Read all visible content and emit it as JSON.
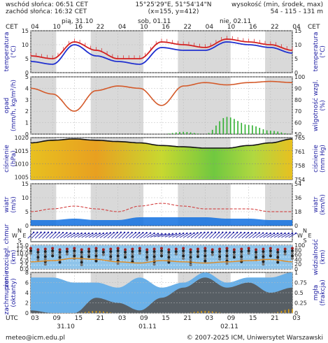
{
  "header": {
    "sunrise": "wschód słońca: 06:51 CET",
    "sunset": "zachód słońca: 16:32 CET",
    "coords": "15°25'29\"E, 51°54'14\"N",
    "grid": "(x=155, y=412)",
    "elev_title": "wysokość (min, środek, max)",
    "elev_values": "54 - 115 - 131 m",
    "tz_left": "CET",
    "tz_right": "CET",
    "day_labels_top": [
      "pią, 31.10",
      "sob, 01.11",
      "nie, 02.11"
    ],
    "hours_top": [
      "04",
      "10",
      "16",
      "22",
      "04",
      "10",
      "16",
      "22",
      "04",
      "10",
      "16",
      "22",
      "04"
    ]
  },
  "footer": {
    "tz": "UTC",
    "hours_bottom": [
      "03",
      "09",
      "15",
      "21",
      "03",
      "09",
      "15",
      "21",
      "03",
      "09",
      "15",
      "21",
      "03"
    ],
    "days_bottom": [
      "31.10",
      "01.11",
      "02.11"
    ],
    "email": "meteo@icm.edu.pl",
    "copyright": "© 2007-2025 ICM, Uniwersytet Warszawski"
  },
  "colors": {
    "night_band": "#d9d9d9",
    "temperature": "#d42020",
    "dew_point": "#2030d0",
    "humidity": "#d45a2a",
    "precip": "#30b030",
    "wind_mean": "#1070e0",
    "wind_gust": "#d03030",
    "cloud_total": "#6ab0e8",
    "cloud_low": "#555555",
    "fog": "#e0a010"
  },
  "chart_data": [
    {
      "type": "line",
      "name": "temperature",
      "ylabel_left": "temperatura",
      "unit_left": "(°C)",
      "ylabel_right": "temperatura",
      "unit_right": "(°C)",
      "ylim": [
        0,
        15
      ],
      "ticks": [
        0,
        5,
        10,
        15
      ],
      "x_hours": [
        0,
        6,
        12,
        18,
        24,
        30,
        36,
        42,
        48,
        54,
        60,
        66,
        72
      ],
      "series": [
        {
          "key": "temp",
          "values": [
            6,
            5,
            11,
            8,
            5,
            5,
            11,
            10,
            9,
            12,
            11,
            10,
            8
          ]
        },
        {
          "key": "dew",
          "values": [
            4,
            3,
            10,
            6,
            4,
            3,
            9,
            8,
            8,
            11,
            10,
            9,
            7
          ]
        }
      ]
    },
    {
      "type": "bar",
      "name": "precip-humidity",
      "ylabel_left": "opad",
      "unit_left": "(mm/h, kg/m²/h)",
      "ylabel_right": "wilgotność wzgl.",
      "unit_right": "(%)",
      "ylim": [
        0,
        5
      ],
      "ticks": [
        0,
        1,
        2,
        3,
        4,
        5
      ],
      "y2lim": [
        50,
        100
      ],
      "ticks2": [
        50,
        60,
        70,
        80,
        90,
        100
      ],
      "x_hours": [
        0,
        6,
        12,
        18,
        24,
        30,
        36,
        42,
        48,
        54,
        60,
        66,
        72
      ],
      "humidity": [
        90,
        85,
        70,
        88,
        92,
        90,
        75,
        92,
        95,
        93,
        95,
        96,
        95
      ],
      "precip": [
        0,
        0,
        0,
        0,
        0,
        0,
        0,
        0.2,
        0,
        1.5,
        0.8,
        0.3,
        0
      ]
    },
    {
      "type": "line",
      "name": "pressure",
      "ylabel_left": "ciśnienie",
      "unit_left": "(hPa)",
      "ylabel_right": "ciśnienie",
      "unit_right": "(mm Hg)",
      "ylim": [
        1004,
        1020
      ],
      "ticks": [
        1005,
        1010,
        1015,
        1020
      ],
      "ticks2": [
        "754",
        "758",
        "761",
        "765"
      ],
      "x_hours": [
        0,
        6,
        12,
        18,
        24,
        30,
        36,
        42,
        48,
        54,
        60,
        66,
        72
      ],
      "values": [
        1018,
        1019,
        1019.5,
        1019,
        1018.5,
        1018,
        1017,
        1016.5,
        1016,
        1016,
        1017,
        1018,
        1019.5
      ]
    },
    {
      "type": "line",
      "name": "wind",
      "ylabel_left": "wiatr",
      "unit_left": "(m/s)",
      "ylabel_right": "wiatr",
      "unit_right": "(km/h)",
      "ylim": [
        0,
        15
      ],
      "ticks": [
        0,
        5,
        10,
        15
      ],
      "ticks2": [
        "0",
        "18",
        "36",
        "54"
      ],
      "x_hours": [
        0,
        6,
        12,
        18,
        24,
        30,
        36,
        42,
        48,
        54,
        60,
        66,
        72
      ],
      "mean": [
        2,
        2,
        2.5,
        2,
        2,
        3,
        3,
        3,
        3,
        2.5,
        2.5,
        2,
        2
      ],
      "gust": [
        5,
        6,
        7,
        6,
        5,
        7,
        8,
        7,
        6,
        6,
        6,
        5,
        5
      ]
    },
    {
      "type": "scatter",
      "name": "wind-direction",
      "compass": [
        "N",
        "S",
        "W",
        "E"
      ],
      "x_hours": [
        0,
        6,
        12,
        18,
        24,
        30,
        36,
        42,
        48,
        54,
        60,
        66,
        72
      ],
      "direction_deg": [
        225,
        225,
        240,
        240,
        225,
        230,
        250,
        240,
        225,
        225,
        230,
        240,
        240
      ]
    },
    {
      "type": "line",
      "name": "cloud-base-visibility",
      "ylabel_left": "pion. rozciągł. chmur",
      "unit_left": "(km)",
      "ylabel_right": "widzialność",
      "unit_right": "(km)",
      "ylim": [
        0,
        15
      ],
      "ticks": [
        0.0,
        2.5,
        5.0,
        7.5,
        10.0,
        12.5,
        15.0
      ],
      "y2lim": [
        0,
        100
      ],
      "ticks2": [
        0,
        20,
        40,
        60,
        80,
        100
      ],
      "x_hours": [
        0,
        6,
        12,
        18,
        24,
        30,
        36,
        42,
        48,
        54,
        60,
        66,
        72
      ],
      "visibility": [
        30,
        35,
        45,
        40,
        30,
        25,
        35,
        30,
        25,
        30,
        35,
        40,
        30
      ]
    },
    {
      "type": "area",
      "name": "cloud-cover-fog",
      "ylabel_left": "zachmurzenie",
      "unit_left": "(oktanty)",
      "ylabel_right": "mgła",
      "unit_right": "(frakcja)",
      "ylim": [
        0,
        8
      ],
      "ticks": [
        0,
        2,
        4,
        6,
        8
      ],
      "y2lim": [
        0,
        1
      ],
      "ticks2": [
        "0",
        "0.25",
        "0.5",
        "0.75",
        "1"
      ],
      "x_hours": [
        0,
        6,
        12,
        18,
        24,
        30,
        36,
        42,
        48,
        54,
        60,
        66,
        72
      ],
      "cloud_total": [
        7,
        7,
        6,
        6,
        5,
        7,
        5,
        6,
        8,
        6,
        7,
        7,
        8
      ],
      "cloud_low": [
        0.5,
        0,
        0,
        3,
        2,
        0.5,
        3,
        5,
        7,
        5,
        6,
        4,
        5
      ],
      "fog": [
        0,
        0,
        0,
        0.05,
        0,
        0,
        0,
        0,
        0.05,
        0,
        0,
        0,
        0.1
      ]
    }
  ]
}
